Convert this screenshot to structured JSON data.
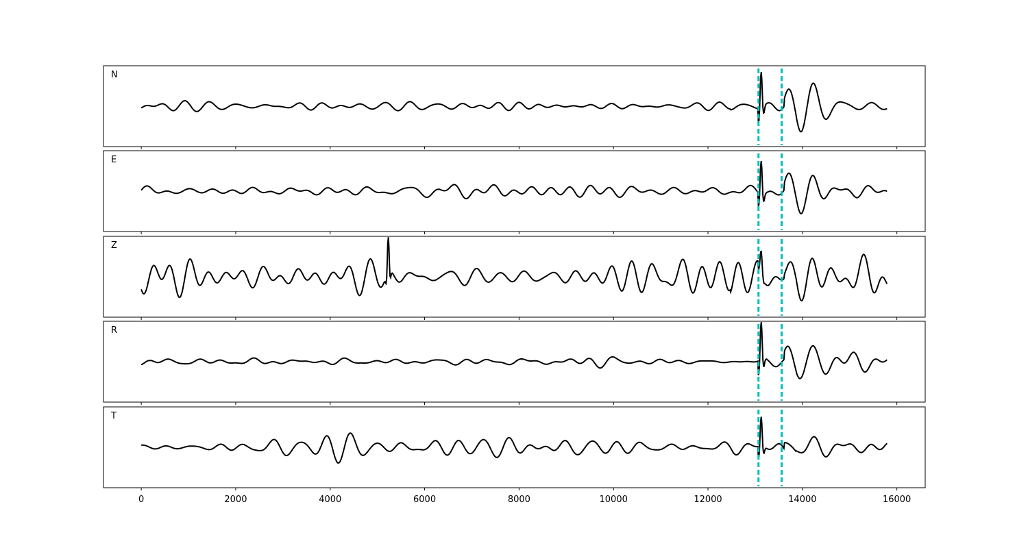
{
  "chart_data": {
    "type": "line",
    "layout": "stacked-subplots",
    "shared_x_axis": true,
    "xlim": [
      -800,
      16600
    ],
    "xticks": [
      0,
      2000,
      4000,
      6000,
      8000,
      10000,
      12000,
      14000,
      16000
    ],
    "xtick_labels": [
      "0",
      "2000",
      "4000",
      "6000",
      "8000",
      "10000",
      "12000",
      "14000",
      "16000"
    ],
    "x_range": [
      0,
      15800
    ],
    "y_ticks_shown": false,
    "grid": false,
    "line_color": "#000000",
    "marker_color": "#00bfbf",
    "vertical_markers": [
      {
        "x": 13070,
        "style": "dashed"
      },
      {
        "x": 13560,
        "style": "dashed"
      }
    ],
    "subplots": [
      {
        "label": "N",
        "ylim": [
          -1,
          1
        ],
        "noise_amplitude": 0.15,
        "event_amplitude": 0.9,
        "extra_bursts": []
      },
      {
        "label": "E",
        "ylim": [
          -1,
          1
        ],
        "noise_amplitude": 0.2,
        "event_amplitude": 0.85,
        "extra_bursts": []
      },
      {
        "label": "Z",
        "ylim": [
          -1,
          1
        ],
        "noise_amplitude": 0.42,
        "event_amplitude": 0.45,
        "extra_bursts": [
          {
            "x": 5230,
            "amplitude": 0.9
          }
        ]
      },
      {
        "label": "R",
        "ylim": [
          -1,
          1
        ],
        "noise_amplitude": 0.12,
        "event_amplitude": 0.95,
        "extra_bursts": []
      },
      {
        "label": "T",
        "ylim": [
          -1,
          1
        ],
        "noise_amplitude": 0.28,
        "event_amplitude": 0.75,
        "extra_bursts": []
      }
    ]
  }
}
